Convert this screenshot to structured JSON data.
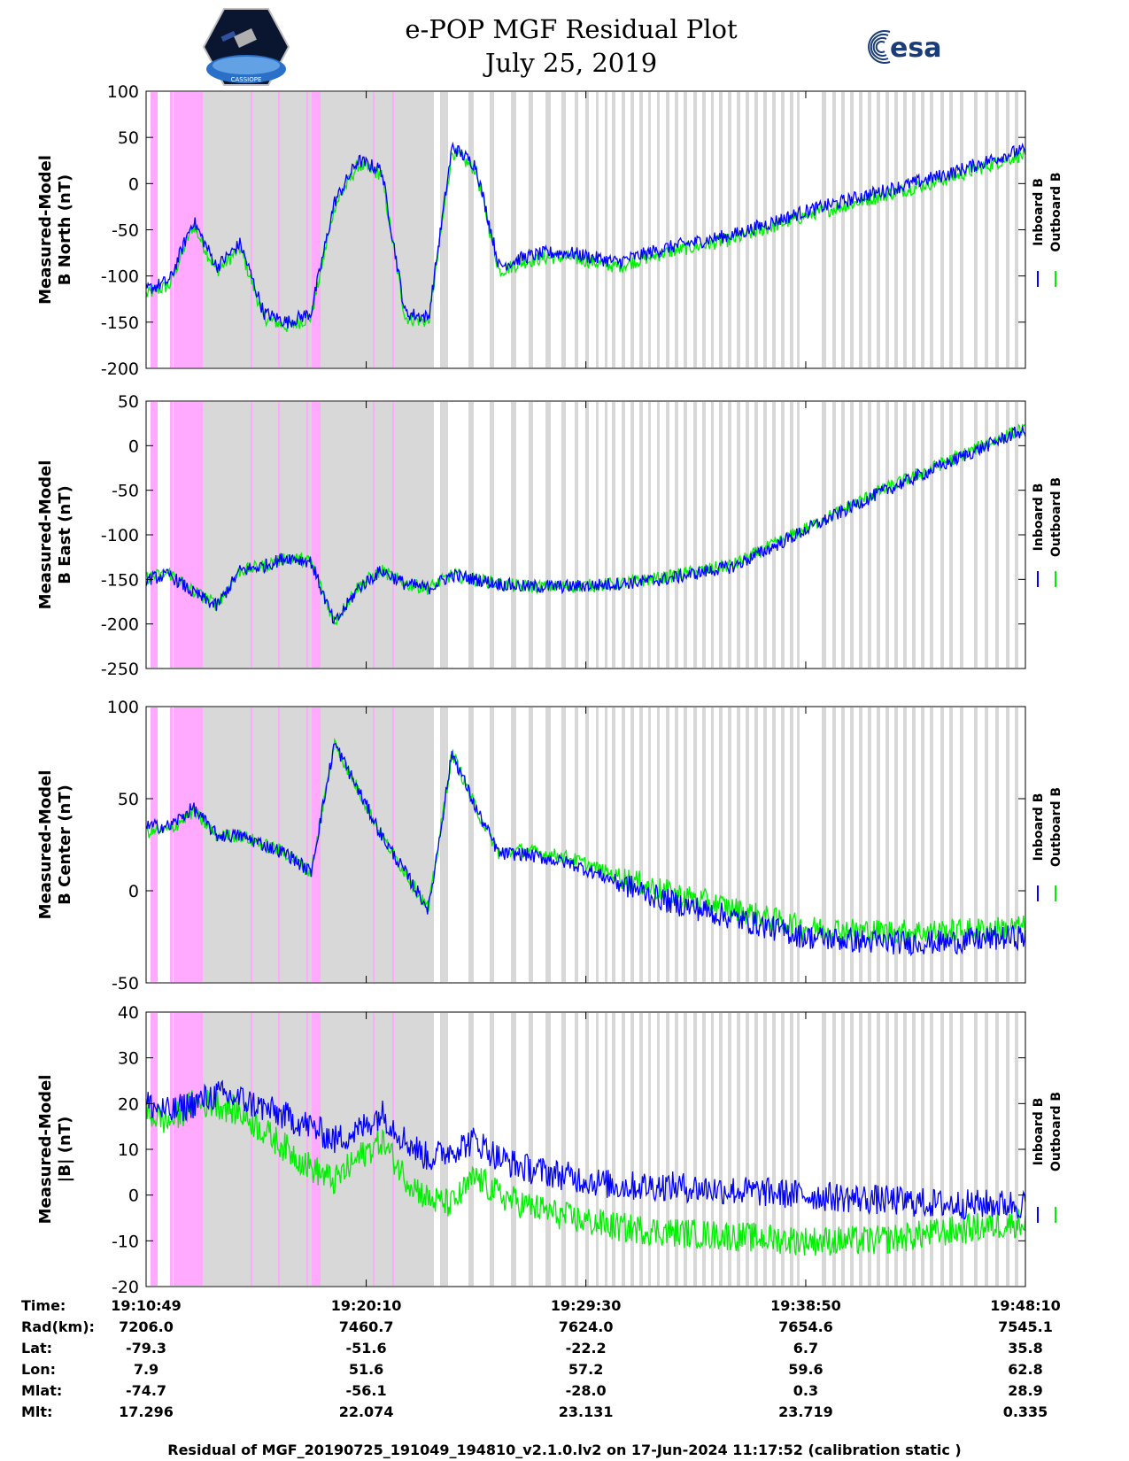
{
  "header": {
    "title_line1": "e-POP MGF Residual Plot",
    "title_line2": "July 25, 2019",
    "logo_left_text": "CASSIOPE",
    "logo_right_text": "esa"
  },
  "colors": {
    "inboard": "#0000ff",
    "outboard": "#00ee00",
    "gap_gray": "#d8d8d8",
    "gap_magenta": "#ffaaff"
  },
  "legend": {
    "inboard": "Inboard B",
    "outboard": "Outboard B"
  },
  "chart_data": [
    {
      "type": "line",
      "ylabel_line1": "Measured-Model",
      "ylabel_line2": "B North (nT)",
      "ylim": [
        -200,
        100
      ],
      "yticks": [
        -200,
        -150,
        -100,
        -50,
        0,
        50,
        100
      ],
      "x_minutes": [
        0,
        1,
        2,
        3,
        4,
        5,
        6,
        7,
        8,
        9,
        10,
        11,
        12,
        13,
        14,
        15,
        16,
        17,
        18,
        19,
        20,
        22,
        25,
        28,
        31,
        34,
        37
      ],
      "inboard": [
        -115,
        -105,
        -40,
        -90,
        -65,
        -140,
        -150,
        -140,
        -20,
        25,
        15,
        -140,
        -145,
        40,
        20,
        -90,
        -80,
        -75,
        -75,
        -80,
        -85,
        -70,
        -55,
        -30,
        -10,
        10,
        35
      ],
      "outboard": [
        -120,
        -110,
        -45,
        -95,
        -70,
        -145,
        -155,
        -145,
        -25,
        20,
        10,
        -145,
        -150,
        35,
        15,
        -95,
        -85,
        -80,
        -80,
        -85,
        -90,
        -75,
        -60,
        -35,
        -15,
        5,
        30
      ]
    },
    {
      "type": "line",
      "ylabel_line1": "Measured-Model",
      "ylabel_line2": "B East (nT)",
      "ylim": [
        -250,
        50
      ],
      "yticks": [
        -250,
        -200,
        -150,
        -100,
        -50,
        0,
        50
      ],
      "x_minutes": [
        0,
        1,
        2,
        3,
        4,
        5,
        6,
        7,
        8,
        9,
        10,
        11,
        12,
        13,
        14,
        15,
        16,
        18,
        20,
        22,
        25,
        28,
        31,
        34,
        37
      ],
      "inboard": [
        -150,
        -145,
        -165,
        -180,
        -140,
        -135,
        -125,
        -130,
        -200,
        -160,
        -140,
        -155,
        -160,
        -145,
        -150,
        -155,
        -158,
        -158,
        -155,
        -150,
        -135,
        -95,
        -55,
        -20,
        15
      ],
      "outboard": [
        -148,
        -143,
        -163,
        -178,
        -140,
        -135,
        -125,
        -130,
        -198,
        -158,
        -140,
        -155,
        -160,
        -145,
        -150,
        -155,
        -158,
        -158,
        -155,
        -148,
        -133,
        -93,
        -53,
        -18,
        17
      ]
    },
    {
      "type": "line",
      "ylabel_line1": "Measured-Model",
      "ylabel_line2": "B Center (nT)",
      "ylim": [
        -50,
        100
      ],
      "yticks": [
        -50,
        0,
        50,
        100
      ],
      "x_minutes": [
        0,
        1,
        2,
        3,
        4,
        5,
        6,
        7,
        8,
        9,
        10,
        11,
        12,
        13,
        14,
        15,
        16,
        18,
        20,
        22,
        25,
        28,
        31,
        34,
        37
      ],
      "inboard": [
        35,
        35,
        45,
        30,
        30,
        25,
        20,
        10,
        80,
        55,
        30,
        10,
        -10,
        75,
        45,
        20,
        20,
        15,
        5,
        -5,
        -15,
        -25,
        -28,
        -28,
        -25
      ],
      "outboard": [
        32,
        33,
        43,
        30,
        30,
        25,
        20,
        10,
        80,
        55,
        30,
        10,
        -10,
        75,
        45,
        20,
        22,
        18,
        8,
        0,
        -10,
        -20,
        -22,
        -22,
        -20
      ]
    },
    {
      "type": "line",
      "ylabel_line1": "Measured-Model",
      "ylabel_line2": "|B| (nT)",
      "ylim": [
        -20,
        40
      ],
      "yticks": [
        -20,
        -10,
        0,
        10,
        20,
        30,
        40
      ],
      "x_minutes": [
        0,
        1,
        2,
        3,
        4,
        5,
        6,
        7,
        8,
        9,
        10,
        11,
        12,
        13,
        14,
        15,
        16,
        18,
        20,
        22,
        25,
        28,
        31,
        34,
        37
      ],
      "inboard": [
        20,
        18,
        20,
        22,
        21,
        19,
        17,
        15,
        12,
        14,
        18,
        12,
        8,
        10,
        12,
        8,
        6,
        4,
        2,
        2,
        1,
        0,
        -1,
        -2,
        -2
      ],
      "outboard": [
        18,
        16,
        20,
        20,
        18,
        14,
        10,
        6,
        3,
        8,
        12,
        4,
        -1,
        -2,
        4,
        0,
        -2,
        -5,
        -7,
        -8,
        -9,
        -10,
        -10,
        -8,
        -6
      ]
    }
  ],
  "x_axis": {
    "x_range_minutes": [
      0,
      37.35
    ],
    "tick_minutes": [
      0,
      9.35,
      18.68,
      28.02,
      37.35
    ],
    "tick_labels": [
      "19:10:49",
      "19:20:10",
      "19:29:30",
      "19:38:50",
      "19:48:10"
    ]
  },
  "info_table": {
    "row_labels": [
      "Time:",
      "Rad(km):",
      "Lat:",
      "Lon:",
      "Mlat:",
      "Mlt:"
    ],
    "columns": [
      [
        "19:10:49",
        "7206.0",
        "-79.3",
        "7.9",
        "-74.7",
        "17.296"
      ],
      [
        "19:20:10",
        "7460.7",
        "-51.6",
        "51.6",
        "-56.1",
        "22.074"
      ],
      [
        "19:29:30",
        "7624.0",
        "-22.2",
        "57.2",
        "-28.0",
        "23.131"
      ],
      [
        "19:38:50",
        "7654.6",
        "6.7",
        "59.6",
        "0.3",
        "23.719"
      ],
      [
        "19:48:10",
        "7545.1",
        "35.8",
        "62.8",
        "28.9",
        "0.335"
      ]
    ]
  },
  "footer": "Residual of MGF_20190725_191049_194810_v2.1.0.lv2 on 17-Jun-2024 11:17:52 (calibration static )"
}
